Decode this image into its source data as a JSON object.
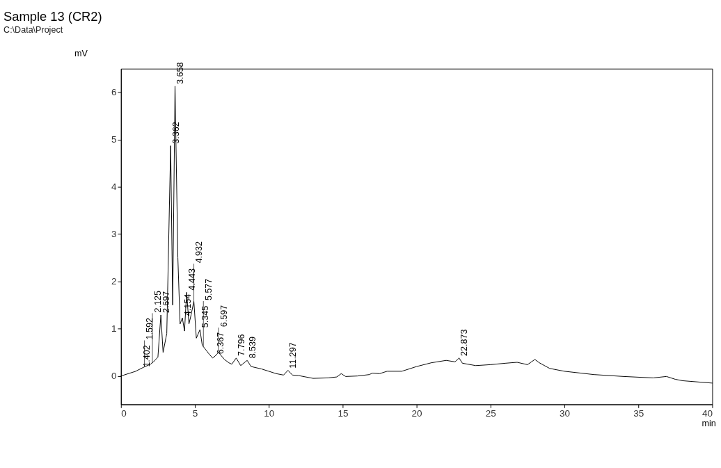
{
  "chart_data": {
    "type": "line",
    "title": "Sample 13 (CR2)",
    "subtitle": "C:\\Data\\Project",
    "xlabel": "min",
    "ylabel": "mV",
    "xlim": [
      0,
      40
    ],
    "ylim": [
      -0.6,
      6.5
    ],
    "xticks": [
      0,
      5,
      10,
      15,
      20,
      25,
      30,
      35,
      40
    ],
    "yticks": [
      0,
      1,
      2,
      3,
      4,
      5,
      6
    ],
    "grid": false,
    "marker": "none",
    "line_style": "solid",
    "series": [
      {
        "color": "#000000",
        "x": [
          0,
          1,
          1.5,
          2,
          2.2,
          2.5,
          2.7,
          2.85,
          3.1,
          3.362,
          3.5,
          3.658,
          3.85,
          4.0,
          4.154,
          4.3,
          4.443,
          4.6,
          4.75,
          4.932,
          5.1,
          5.345,
          5.5,
          5.577,
          6.0,
          6.2,
          6.367,
          6.597,
          7.0,
          7.3,
          7.5,
          7.796,
          8.1,
          8.539,
          8.8,
          9.5,
          10,
          10.5,
          11,
          11.297,
          11.6,
          12,
          13,
          14,
          14.6,
          14.9,
          15.2,
          16,
          16.8,
          17,
          17.5,
          18,
          19,
          20,
          21,
          22,
          22.6,
          22.873,
          23.1,
          24,
          25,
          26,
          26.8,
          27.5,
          28,
          28.3,
          29,
          30,
          32,
          34,
          36,
          36.9,
          37.5,
          38,
          40
        ],
        "values": [
          0,
          0.1,
          0.18,
          0.25,
          0.3,
          0.4,
          1.29,
          0.5,
          0.9,
          4.87,
          1.5,
          6.13,
          2.5,
          1.1,
          1.23,
          0.95,
          1.77,
          1.1,
          1.3,
          1.58,
          0.8,
          0.98,
          0.65,
          0.62,
          0.45,
          0.38,
          0.42,
          0.5,
          0.35,
          0.28,
          0.25,
          0.38,
          0.22,
          0.33,
          0.2,
          0.15,
          0.1,
          0.05,
          0.02,
          0.12,
          0.02,
          0.01,
          -0.05,
          -0.04,
          -0.02,
          0.05,
          -0.01,
          0.0,
          0.03,
          0.06,
          0.05,
          0.1,
          0.1,
          0.2,
          0.28,
          0.33,
          0.3,
          0.38,
          0.27,
          0.22,
          0.24,
          0.27,
          0.29,
          0.24,
          0.35,
          0.28,
          0.16,
          0.1,
          0.03,
          -0.01,
          -0.04,
          -0.01,
          -0.07,
          -0.1,
          -0.15
        ]
      }
    ],
    "annotations": [
      {
        "text": "1.402",
        "x": 1.402,
        "y": 0.15
      },
      {
        "text": "1.592",
        "x": 1.592,
        "y": 0.2
      },
      {
        "text": "2.125",
        "x": 2.125,
        "y": 0.28
      },
      {
        "text": "2.697",
        "x": 2.697,
        "y": 1.29
      },
      {
        "text": "3.362",
        "x": 3.362,
        "y": 4.87
      },
      {
        "text": "3.658",
        "x": 3.658,
        "y": 6.13
      },
      {
        "text": "4.154",
        "x": 4.154,
        "y": 1.23
      },
      {
        "text": "4.443",
        "x": 4.443,
        "y": 1.77
      },
      {
        "text": "4.932",
        "x": 4.932,
        "y": 1.58
      },
      {
        "text": "5.345",
        "x": 5.345,
        "y": 0.98
      },
      {
        "text": "5.577",
        "x": 5.577,
        "y": 0.62
      },
      {
        "text": "6.367",
        "x": 6.367,
        "y": 0.42
      },
      {
        "text": "6.597",
        "x": 6.597,
        "y": 0.5
      },
      {
        "text": "7.796",
        "x": 7.796,
        "y": 0.38
      },
      {
        "text": "8.539",
        "x": 8.539,
        "y": 0.33
      },
      {
        "text": "11.297",
        "x": 11.297,
        "y": 0.12
      },
      {
        "text": "22.873",
        "x": 22.873,
        "y": 0.38
      }
    ]
  }
}
